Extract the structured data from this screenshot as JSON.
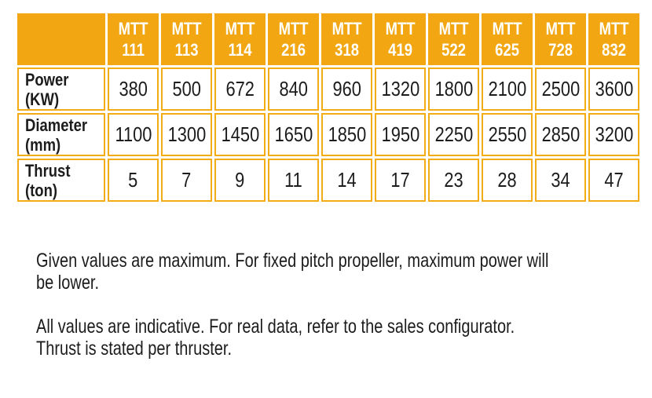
{
  "colors": {
    "header_orange": "#F2A712",
    "border_orange": "#F4AC14",
    "header_text": "#FFFFFF",
    "body_text": "#1C1C1C"
  },
  "table": {
    "corner_label": "",
    "columns": [
      {
        "line1": "MTT",
        "line2": "111"
      },
      {
        "line1": "MTT",
        "line2": "113"
      },
      {
        "line1": "MTT",
        "line2": "114"
      },
      {
        "line1": "MTT",
        "line2": "216"
      },
      {
        "line1": "MTT",
        "line2": "318"
      },
      {
        "line1": "MTT",
        "line2": "419"
      },
      {
        "line1": "MTT",
        "line2": "522"
      },
      {
        "line1": "MTT",
        "line2": "625"
      },
      {
        "line1": "MTT",
        "line2": "728"
      },
      {
        "line1": "MTT",
        "line2": "832"
      }
    ],
    "rows": [
      {
        "label_line1": "Power",
        "label_line2": "(KW)",
        "values": [
          "380",
          "500",
          "672",
          "840",
          "960",
          "1320",
          "1800",
          "2100",
          "2500",
          "3600"
        ]
      },
      {
        "label_line1": "Diameter",
        "label_line2": "(mm)",
        "values": [
          "1100",
          "1300",
          "1450",
          "1650",
          "1850",
          "1950",
          "2250",
          "2550",
          "2850",
          "3200"
        ]
      },
      {
        "label_line1": "Thrust",
        "label_line2": "(ton)",
        "values": [
          "5",
          "7",
          "9",
          "11",
          "14",
          "17",
          "23",
          "28",
          "34",
          "47"
        ]
      }
    ]
  },
  "notes": [
    {
      "lines": [
        "Given values are maximum. For fixed pitch propeller, maximum power will",
        "be lower."
      ]
    },
    {
      "lines": [
        "All values are indicative. For real data, refer to the sales configurator.",
        "Thrust is stated per thruster."
      ]
    }
  ],
  "chart_data": {
    "type": "table",
    "title": "",
    "columns": [
      "",
      "MTT 111",
      "MTT 113",
      "MTT 114",
      "MTT 216",
      "MTT 318",
      "MTT 419",
      "MTT 522",
      "MTT 625",
      "MTT 728",
      "MTT 832"
    ],
    "rows": [
      [
        "Power (KW)",
        380,
        500,
        672,
        840,
        960,
        1320,
        1800,
        2100,
        2500,
        3600
      ],
      [
        "Diameter (mm)",
        1100,
        1300,
        1450,
        1650,
        1850,
        1950,
        2250,
        2550,
        2850,
        3200
      ],
      [
        "Thrust (ton)",
        5,
        7,
        9,
        11,
        14,
        17,
        23,
        28,
        34,
        47
      ]
    ]
  }
}
